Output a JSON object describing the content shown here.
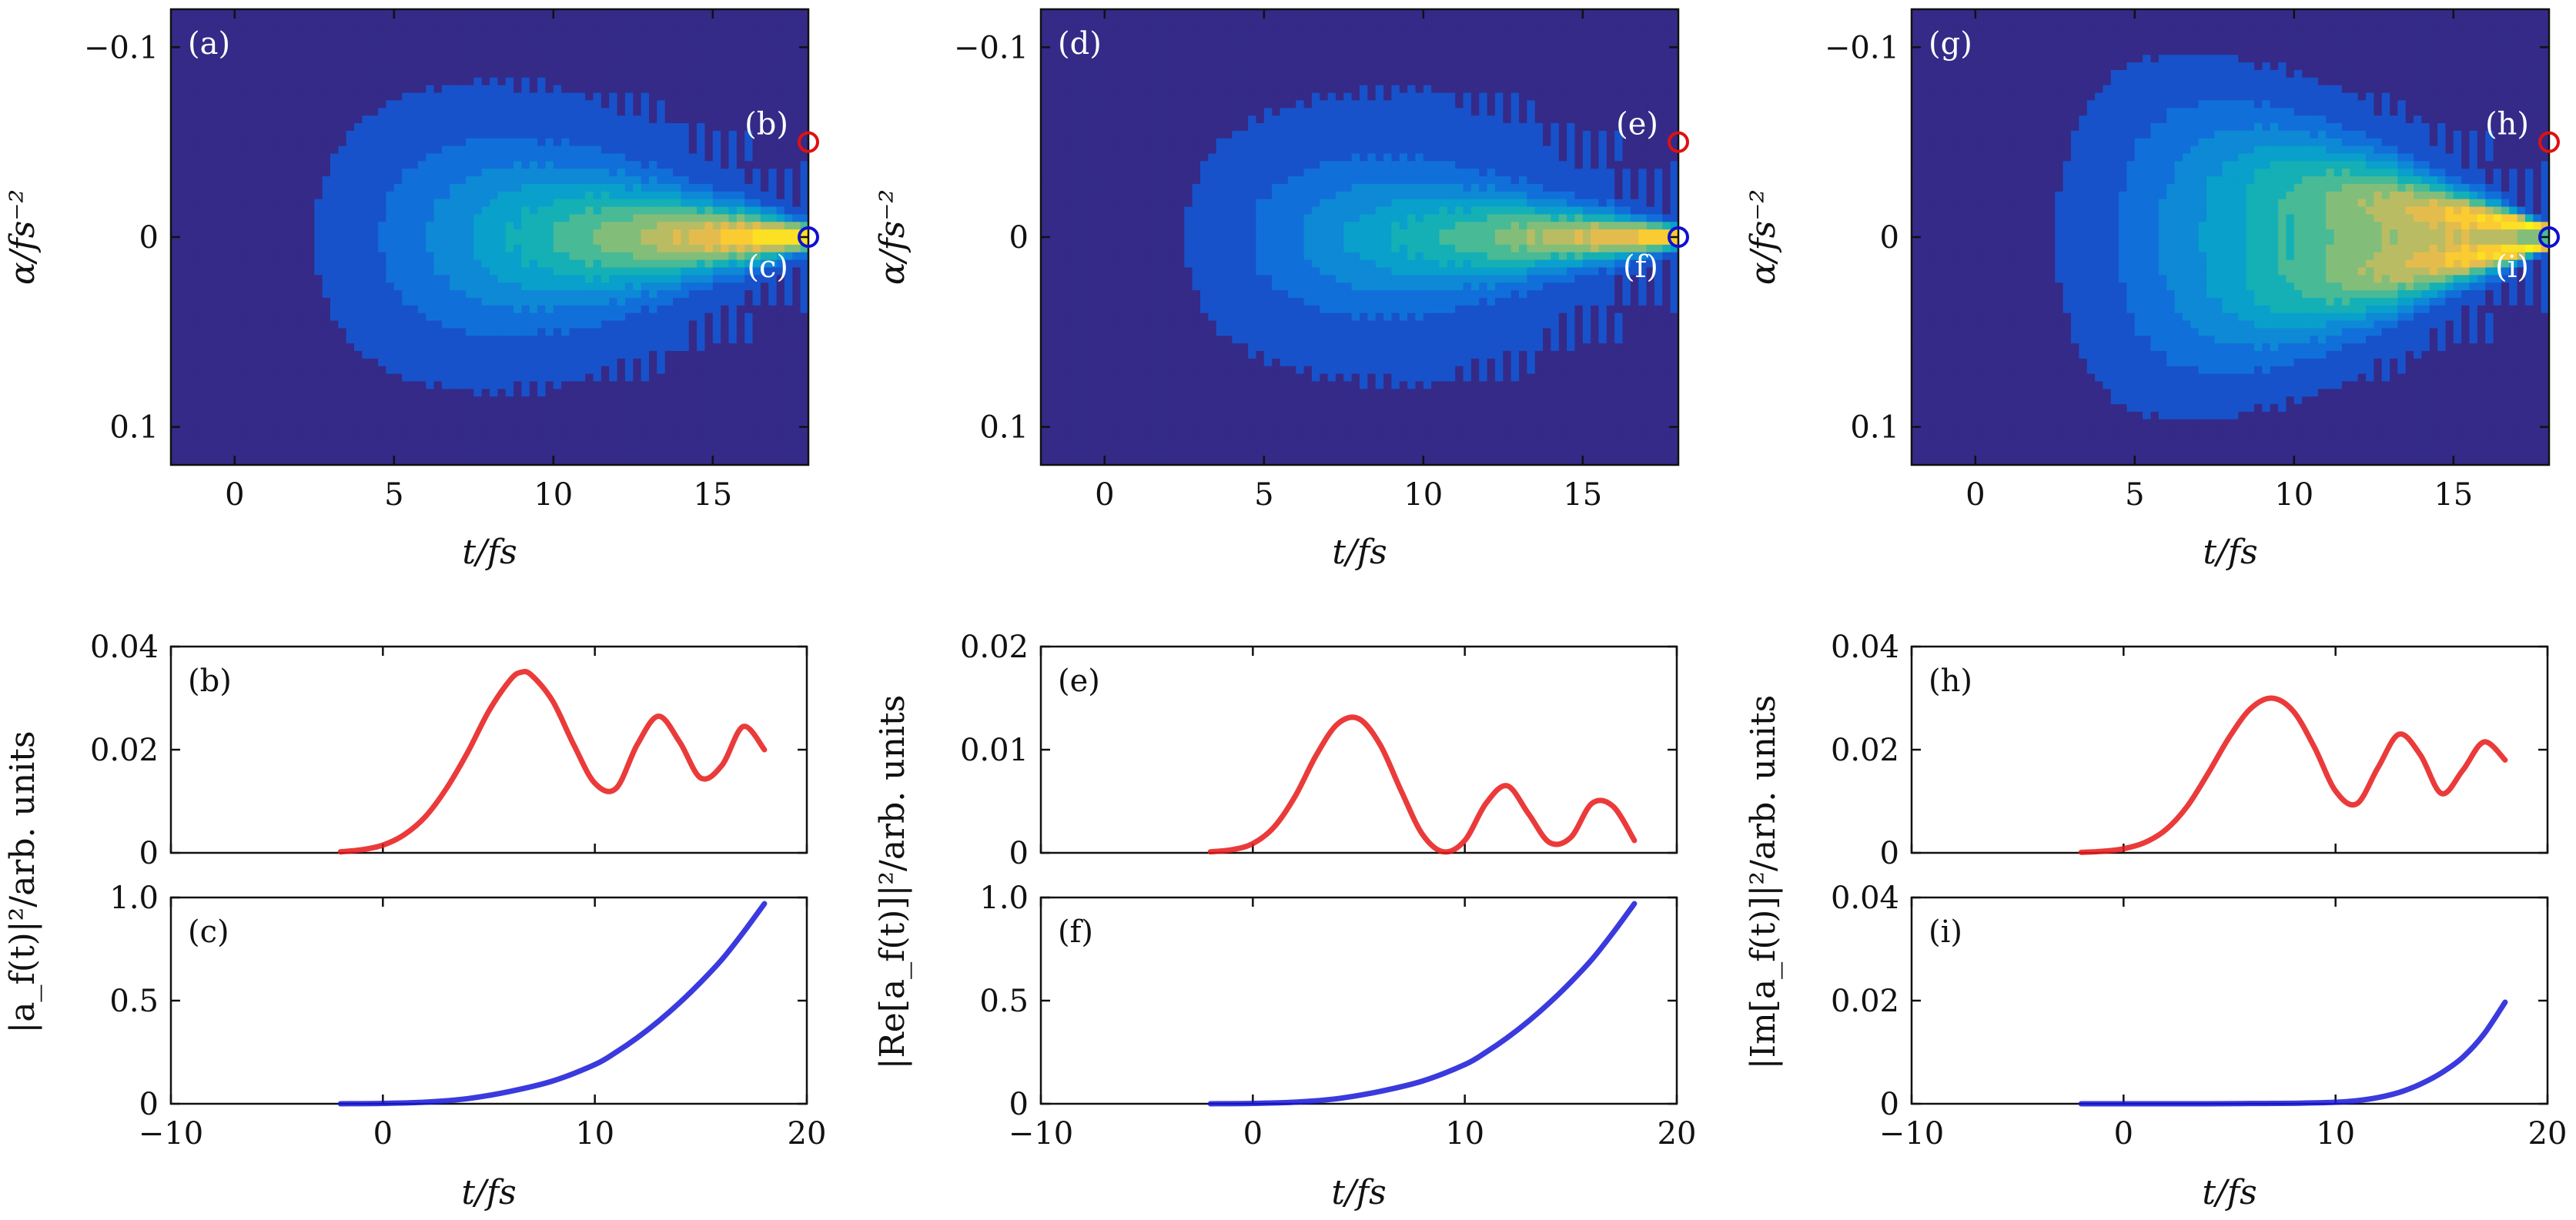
{
  "chart_data": [
    {
      "id": "a",
      "type": "heatmap",
      "panel_label": "(a)",
      "xlabel": "t/fs",
      "ylabel": "α/fs⁻²",
      "xlim": [
        -2,
        18
      ],
      "ylim": [
        -0.12,
        0.12
      ],
      "y_inverted": true,
      "xticks": [
        0,
        5,
        10,
        15
      ],
      "xtick_labels": [
        "0",
        "5",
        "10",
        "15"
      ],
      "yticks": [
        -0.1,
        0,
        0.1
      ],
      "ytick_labels": [
        "−0.1",
        "0",
        "0.1"
      ],
      "colormap": "parula",
      "markers": [
        {
          "label": "(b)",
          "x": 18,
          "y": -0.05,
          "color": "#e01010",
          "label_side": "above"
        },
        {
          "label": "(c)",
          "x": 18,
          "y": 0,
          "color": "#1010d0",
          "label_side": "below"
        }
      ],
      "pattern": {
        "mode": "single",
        "peak": 1.0,
        "spread": 0.55
      }
    },
    {
      "id": "d",
      "type": "heatmap",
      "panel_label": "(d)",
      "xlabel": "t/fs",
      "ylabel": "α/fs⁻²",
      "xlim": [
        -2,
        18
      ],
      "ylim": [
        -0.12,
        0.12
      ],
      "y_inverted": true,
      "xticks": [
        0,
        5,
        10,
        15
      ],
      "xtick_labels": [
        "0",
        "5",
        "10",
        "15"
      ],
      "yticks": [
        -0.1,
        0,
        0.1
      ],
      "ytick_labels": [
        "−0.1",
        "0",
        "0.1"
      ],
      "colormap": "parula",
      "markers": [
        {
          "label": "(e)",
          "x": 18,
          "y": -0.05,
          "color": "#e01010",
          "label_side": "above"
        },
        {
          "label": "(f)",
          "x": 18,
          "y": 0,
          "color": "#1010d0",
          "label_side": "below"
        }
      ],
      "pattern": {
        "mode": "single",
        "peak": 0.9,
        "spread": 0.4
      }
    },
    {
      "id": "g",
      "type": "heatmap",
      "panel_label": "(g)",
      "xlabel": "t/fs",
      "ylabel": "α/fs⁻²",
      "xlim": [
        -2,
        18
      ],
      "ylim": [
        -0.12,
        0.12
      ],
      "y_inverted": true,
      "xticks": [
        0,
        5,
        10,
        15
      ],
      "xtick_labels": [
        "0",
        "5",
        "10",
        "15"
      ],
      "yticks": [
        -0.1,
        0,
        0.1
      ],
      "ytick_labels": [
        "−0.1",
        "0",
        "0.1"
      ],
      "colormap": "parula",
      "markers": [
        {
          "label": "(h)",
          "x": 18,
          "y": -0.05,
          "color": "#e01010",
          "label_side": "above"
        },
        {
          "label": "(i)",
          "x": 18,
          "y": 0,
          "color": "#1010d0",
          "label_side": "below"
        }
      ],
      "pattern": {
        "mode": "double",
        "peak": 1.0,
        "spread": 0.7
      }
    },
    {
      "id": "b",
      "type": "line",
      "panel_label": "(b)",
      "xlim": [
        -10,
        20
      ],
      "ylim": [
        0,
        0.04
      ],
      "yticks": [
        0,
        0.02,
        0.04
      ],
      "ytick_labels": [
        "0",
        "0.02",
        "0.04"
      ],
      "xticks": [
        -10,
        0,
        10,
        20
      ],
      "series": [
        {
          "color": "#e81818",
          "x": [
            -2,
            -1,
            0,
            1,
            2,
            3,
            4,
            5,
            6,
            6.5,
            7,
            8,
            9,
            10,
            11,
            12,
            13,
            14,
            15,
            16,
            17,
            18
          ],
          "y": [
            0.0002,
            0.0006,
            0.0015,
            0.0035,
            0.007,
            0.0125,
            0.0195,
            0.0275,
            0.0335,
            0.035,
            0.0345,
            0.0295,
            0.021,
            0.0135,
            0.0125,
            0.021,
            0.0265,
            0.0215,
            0.0145,
            0.017,
            0.0245,
            0.02
          ]
        }
      ]
    },
    {
      "id": "c",
      "type": "line",
      "panel_label": "(c)",
      "xlim": [
        -10,
        20
      ],
      "ylim": [
        0,
        1.0
      ],
      "yticks": [
        0,
        0.5,
        1.0
      ],
      "ytick_labels": [
        "0",
        "0.5",
        "1.0"
      ],
      "xticks": [
        -10,
        0,
        10,
        20
      ],
      "xtick_labels": [
        "−10",
        "0",
        "10",
        "20"
      ],
      "xlabel": "t/fs",
      "ylabel": "|a_f(t)|²/arb. units",
      "series": [
        {
          "color": "#1818d8",
          "x": [
            -2,
            0,
            2,
            4,
            6,
            8,
            10,
            11,
            12,
            13,
            14,
            15,
            16,
            17,
            18
          ],
          "y": [
            0,
            0.002,
            0.008,
            0.025,
            0.06,
            0.11,
            0.19,
            0.25,
            0.32,
            0.4,
            0.49,
            0.59,
            0.7,
            0.83,
            0.97
          ]
        }
      ]
    },
    {
      "id": "e",
      "type": "line",
      "panel_label": "(e)",
      "xlim": [
        -10,
        20
      ],
      "ylim": [
        0,
        0.02
      ],
      "yticks": [
        0,
        0.01,
        0.02
      ],
      "ytick_labels": [
        "0",
        "0.01",
        "0.02"
      ],
      "xticks": [
        -10,
        0,
        10,
        20
      ],
      "series": [
        {
          "color": "#e81818",
          "x": [
            -2,
            -1,
            0,
            1,
            2,
            3,
            4,
            5,
            6,
            7,
            8,
            9,
            10,
            11,
            12,
            13,
            14,
            15,
            16,
            17,
            18
          ],
          "y": [
            0.0001,
            0.0003,
            0.0009,
            0.0025,
            0.0055,
            0.0095,
            0.0125,
            0.013,
            0.0105,
            0.006,
            0.0018,
            0.0001,
            0.0012,
            0.0048,
            0.0065,
            0.0038,
            0.001,
            0.0015,
            0.0048,
            0.0045,
            0.0012
          ]
        }
      ]
    },
    {
      "id": "f",
      "type": "line",
      "panel_label": "(f)",
      "xlim": [
        -10,
        20
      ],
      "ylim": [
        0,
        1.0
      ],
      "yticks": [
        0,
        0.5,
        1.0
      ],
      "ytick_labels": [
        "0",
        "0.5",
        "1.0"
      ],
      "xticks": [
        -10,
        0,
        10,
        20
      ],
      "xtick_labels": [
        "−10",
        "0",
        "10",
        "20"
      ],
      "xlabel": "t/fs",
      "ylabel": "|Re[a_f(t)]|²/arb. units",
      "series": [
        {
          "color": "#1818d8",
          "x": [
            -2,
            0,
            2,
            4,
            6,
            8,
            10,
            11,
            12,
            13,
            14,
            15,
            16,
            17,
            18
          ],
          "y": [
            0,
            0.002,
            0.008,
            0.025,
            0.06,
            0.11,
            0.19,
            0.25,
            0.32,
            0.4,
            0.49,
            0.59,
            0.7,
            0.83,
            0.97
          ]
        }
      ]
    },
    {
      "id": "h",
      "type": "line",
      "panel_label": "(h)",
      "xlim": [
        -10,
        20
      ],
      "ylim": [
        0,
        0.04
      ],
      "yticks": [
        0,
        0.02,
        0.04
      ],
      "ytick_labels": [
        "0",
        "0.02",
        "0.04"
      ],
      "xticks": [
        -10,
        0,
        10,
        20
      ],
      "series": [
        {
          "color": "#e81818",
          "x": [
            -2,
            -1,
            0,
            1,
            2,
            3,
            4,
            5,
            6,
            7,
            8,
            9,
            10,
            11,
            12,
            13,
            14,
            15,
            16,
            17,
            18
          ],
          "y": [
            0.0001,
            0.0003,
            0.0008,
            0.002,
            0.0045,
            0.009,
            0.0155,
            0.0225,
            0.028,
            0.03,
            0.0275,
            0.0205,
            0.012,
            0.0095,
            0.0165,
            0.023,
            0.019,
            0.0115,
            0.016,
            0.0215,
            0.018
          ]
        }
      ]
    },
    {
      "id": "i",
      "type": "line",
      "panel_label": "(i)",
      "xlim": [
        -10,
        20
      ],
      "ylim": [
        0,
        0.04
      ],
      "yticks": [
        0,
        0.02,
        0.04
      ],
      "ytick_labels": [
        "0",
        "0.02",
        "0.04"
      ],
      "xticks": [
        -10,
        0,
        10,
        20
      ],
      "xtick_labels": [
        "−10",
        "0",
        "10",
        "20"
      ],
      "xlabel": "t/fs",
      "ylabel": "|Im[a_f(t)]|²/arb. units",
      "series": [
        {
          "color": "#1818d8",
          "x": [
            -2,
            0,
            2,
            4,
            6,
            8,
            10,
            11,
            12,
            13,
            14,
            15,
            16,
            17,
            18
          ],
          "y": [
            0,
            0,
            0,
            0,
            5e-05,
            0.0001,
            0.0003,
            0.0006,
            0.0012,
            0.0022,
            0.0038,
            0.006,
            0.009,
            0.0135,
            0.0197
          ]
        }
      ]
    }
  ]
}
